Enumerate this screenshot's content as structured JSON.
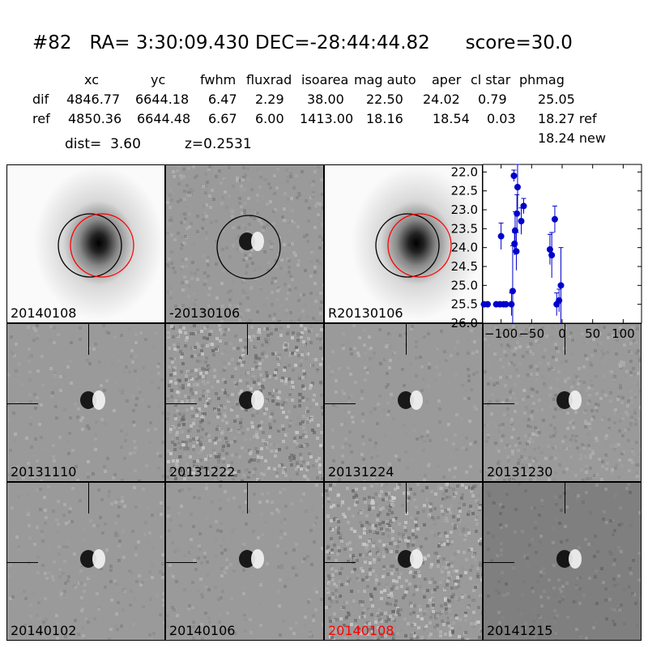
{
  "header": {
    "title": "#82   RA= 3:30:09.430 DEC=-28:44:44.82      score=30.0",
    "columns": [
      "xc",
      "yc",
      "fwhm",
      "fluxrad",
      "isoarea",
      "mag auto",
      "aper",
      "cl star",
      "phmag"
    ],
    "rows": [
      {
        "label": "dif",
        "values": [
          "4846.77",
          "6644.18",
          "6.47",
          "2.29",
          "38.00",
          "22.50",
          "24.02",
          "0.79",
          "25.05"
        ]
      },
      {
        "label": "ref",
        "values": [
          "4850.36",
          "6644.48",
          "6.67",
          "6.00",
          "1413.00",
          "18.16",
          "18.54",
          "0.03",
          "18.27 ref"
        ]
      }
    ],
    "dist_text": "dist=  3.60",
    "z_text": "z=0.2531",
    "new_mag": "18.24 new"
  },
  "panels": [
    {
      "label": "20140108",
      "label_color": "#000000"
    },
    {
      "label": "-20130106",
      "label_color": "#000000"
    },
    {
      "label": "R20130106",
      "label_color": "#000000"
    },
    {
      "label": "20131110",
      "label_color": "#000000"
    },
    {
      "label": "20131222",
      "label_color": "#000000"
    },
    {
      "label": "20131224",
      "label_color": "#000000"
    },
    {
      "label": "20131230",
      "label_color": "#000000"
    },
    {
      "label": "20140102",
      "label_color": "#000000"
    },
    {
      "label": "20140106",
      "label_color": "#000000"
    },
    {
      "label": "20140108",
      "label_color": "#ff0000"
    },
    {
      "label": "20141215",
      "label_color": "#000000"
    }
  ],
  "chart_data": {
    "type": "scatter",
    "xlim": [
      -130,
      130
    ],
    "ylim": [
      26.0,
      21.8
    ],
    "y_inverted": true,
    "x_ticks": [
      -100,
      -50,
      0,
      50,
      100
    ],
    "x_tick_labels": [
      "−100",
      "−50",
      "0",
      "50",
      "100"
    ],
    "y_ticks": [
      22.0,
      22.5,
      23.0,
      23.5,
      24.0,
      24.5,
      25.0,
      25.5,
      26.0
    ],
    "y_tick_labels": [
      "22.0",
      "22.5",
      "23.0",
      "23.5",
      "24.0",
      "24.5",
      "25.0",
      "25.5",
      "26.0"
    ],
    "marker_color": "#0000cc",
    "points": [
      {
        "x": -128,
        "y": 25.5,
        "err": 0.0
      },
      {
        "x": -122,
        "y": 25.5,
        "err": 0.0
      },
      {
        "x": -108,
        "y": 25.5,
        "err": 0.0
      },
      {
        "x": -102,
        "y": 25.5,
        "err": 0.0
      },
      {
        "x": -100,
        "y": 23.7,
        "err": 0.35
      },
      {
        "x": -96,
        "y": 25.5,
        "err": 0.0
      },
      {
        "x": -92,
        "y": 25.5,
        "err": 0.0
      },
      {
        "x": -83,
        "y": 25.5,
        "err": 0.3
      },
      {
        "x": -81,
        "y": 25.15,
        "err": 1.2
      },
      {
        "x": -79,
        "y": 22.1,
        "err": 0.15
      },
      {
        "x": -78,
        "y": 23.9,
        "err": 0.3
      },
      {
        "x": -77,
        "y": 23.55,
        "err": 0.5
      },
      {
        "x": -75,
        "y": 24.1,
        "err": 0.5
      },
      {
        "x": -74,
        "y": 23.1,
        "err": 0.5
      },
      {
        "x": -73,
        "y": 22.4,
        "err": 0.6
      },
      {
        "x": -67,
        "y": 23.3,
        "err": 0.35
      },
      {
        "x": -63,
        "y": 22.9,
        "err": 0.2
      },
      {
        "x": -20,
        "y": 24.05,
        "err": 0.4
      },
      {
        "x": -17,
        "y": 24.2,
        "err": 0.6
      },
      {
        "x": -12,
        "y": 23.25,
        "err": 0.35
      },
      {
        "x": -9,
        "y": 25.5,
        "err": 0.3
      },
      {
        "x": -5,
        "y": 25.4,
        "err": 0.3
      },
      {
        "x": -2,
        "y": 25.0,
        "err": 1.0
      }
    ]
  }
}
